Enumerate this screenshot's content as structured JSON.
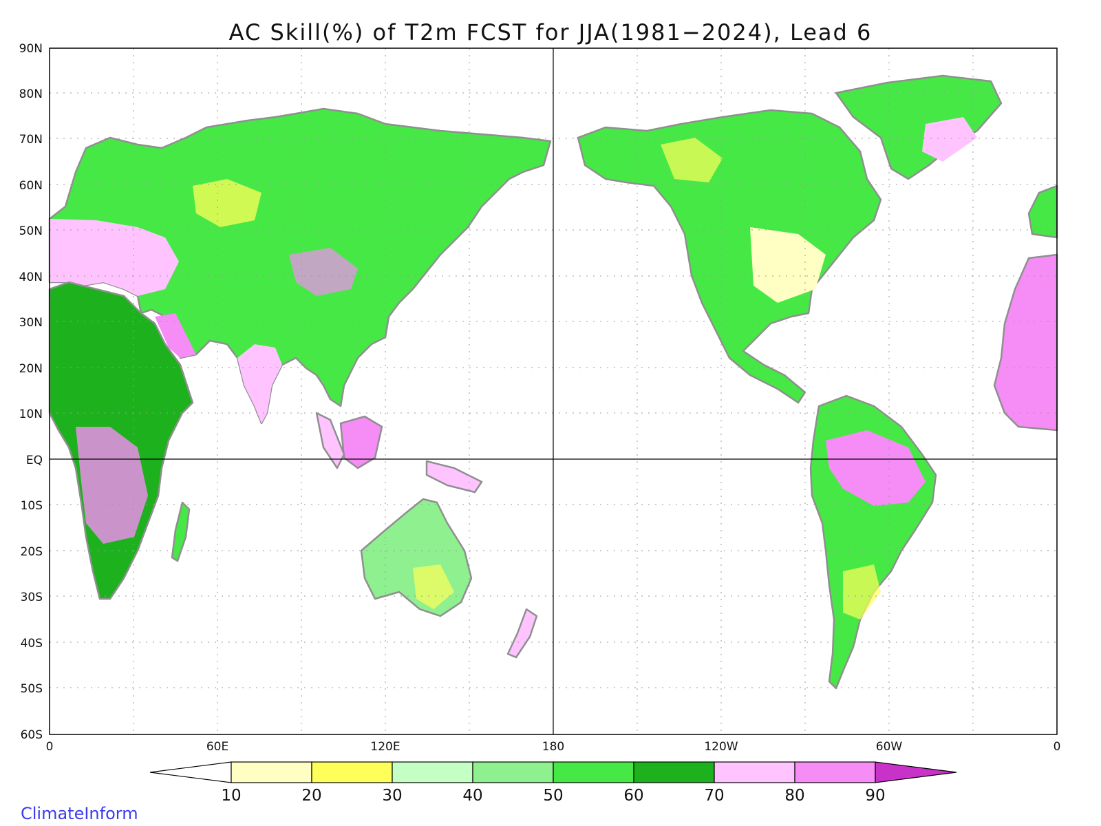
{
  "title": "AC Skill(%) of T2m FCST for JJA(1981−2024), Lead 6",
  "credit": "ClimateInform",
  "map": {
    "lat_labels": [
      "90N",
      "80N",
      "70N",
      "60N",
      "50N",
      "40N",
      "30N",
      "20N",
      "10N",
      "EQ",
      "10S",
      "20S",
      "30S",
      "40S",
      "50S",
      "60S"
    ],
    "lon_labels": [
      "0",
      "60E",
      "120E",
      "180",
      "120W",
      "60W",
      "0"
    ],
    "lat_range": [
      -60,
      90
    ],
    "lon_range": [
      0,
      360
    ],
    "grid": true,
    "ocean_color": "#ffffff",
    "coastline_color": "#8f8f8f"
  },
  "colorbar": {
    "levels": [
      "10",
      "20",
      "30",
      "40",
      "50",
      "60",
      "70",
      "80",
      "90"
    ],
    "colors": [
      "#ffffff",
      "#ffffc4",
      "#ffff5a",
      "#c4ffc4",
      "#8ef08e",
      "#46e846",
      "#1db21d",
      "#ffc4ff",
      "#f68cf6",
      "#c832c8"
    ]
  }
}
